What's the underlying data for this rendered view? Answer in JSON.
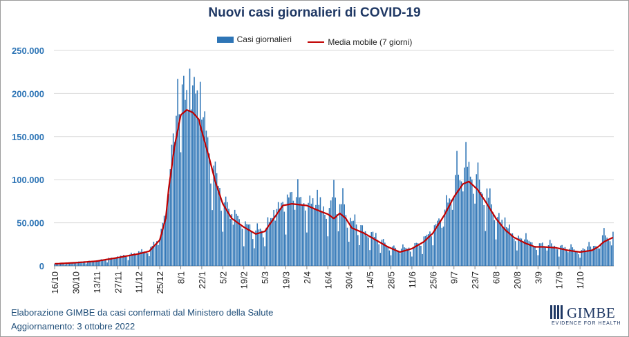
{
  "chart_data": {
    "type": "bar",
    "title": "Nuovi casi giornalieri di COVID-19",
    "xlabel": "",
    "ylabel": "",
    "ylim": [
      0,
      250000
    ],
    "y_ticks": [
      0,
      50000,
      100000,
      150000,
      200000,
      250000
    ],
    "y_tick_labels": [
      "0",
      "50.000",
      "100.000",
      "150.000",
      "200.000",
      "250.000"
    ],
    "x_tick_labels": [
      "16/10",
      "30/10",
      "13/11",
      "27/11",
      "11/12",
      "25/12",
      "8/1",
      "22/1",
      "5/2",
      "19/2",
      "5/3",
      "19/3",
      "2/4",
      "16/4",
      "30/4",
      "14/5",
      "28/5",
      "11/6",
      "25/6",
      "9/7",
      "23/7",
      "6/8",
      "20/8",
      "3/9",
      "17/9",
      "1/10"
    ],
    "tick_step_days": 14,
    "grid": true,
    "legend_position": "top",
    "series": [
      {
        "name": "Casi giornalieri",
        "kind": "bar",
        "color": "#2e75b6"
      },
      {
        "name": "Media mobile (7 giorni)",
        "kind": "line",
        "color": "#c00000"
      }
    ],
    "moving_average_anchors": [
      [
        0,
        2400
      ],
      [
        14,
        3700
      ],
      [
        28,
        5500
      ],
      [
        42,
        9500
      ],
      [
        56,
        14000
      ],
      [
        63,
        17000
      ],
      [
        70,
        30000
      ],
      [
        74,
        55000
      ],
      [
        76,
        90000
      ],
      [
        80,
        140000
      ],
      [
        84,
        175000
      ],
      [
        88,
        181000
      ],
      [
        92,
        178000
      ],
      [
        96,
        170000
      ],
      [
        99,
        150000
      ],
      [
        103,
        125000
      ],
      [
        107,
        98000
      ],
      [
        112,
        72000
      ],
      [
        118,
        55000
      ],
      [
        126,
        45000
      ],
      [
        134,
        37000
      ],
      [
        140,
        40000
      ],
      [
        146,
        55000
      ],
      [
        152,
        70000
      ],
      [
        158,
        72000
      ],
      [
        168,
        70000
      ],
      [
        176,
        64000
      ],
      [
        182,
        60000
      ],
      [
        186,
        55000
      ],
      [
        190,
        61000
      ],
      [
        194,
        55000
      ],
      [
        198,
        44000
      ],
      [
        206,
        38000
      ],
      [
        214,
        30000
      ],
      [
        222,
        22000
      ],
      [
        230,
        16000
      ],
      [
        238,
        20000
      ],
      [
        246,
        28000
      ],
      [
        252,
        38000
      ],
      [
        260,
        60000
      ],
      [
        266,
        80000
      ],
      [
        272,
        95000
      ],
      [
        276,
        98000
      ],
      [
        282,
        88000
      ],
      [
        288,
        72000
      ],
      [
        294,
        55000
      ],
      [
        300,
        42000
      ],
      [
        306,
        33000
      ],
      [
        314,
        26000
      ],
      [
        320,
        22000
      ],
      [
        326,
        22000
      ],
      [
        334,
        21000
      ],
      [
        342,
        18000
      ],
      [
        350,
        16000
      ],
      [
        358,
        18000
      ],
      [
        362,
        22000
      ],
      [
        366,
        28000
      ],
      [
        372,
        33000
      ]
    ],
    "daily_peaks": [
      [
        0,
        2500
      ],
      [
        14,
        4000
      ],
      [
        28,
        6500
      ],
      [
        42,
        11000
      ],
      [
        56,
        17000
      ],
      [
        66,
        28000
      ],
      [
        72,
        50000
      ],
      [
        78,
        140000
      ],
      [
        82,
        218000
      ],
      [
        86,
        220000
      ],
      [
        90,
        228000
      ],
      [
        94,
        200000
      ],
      [
        97,
        214000
      ],
      [
        102,
        150000
      ],
      [
        108,
        102000
      ],
      [
        118,
        60000
      ],
      [
        130,
        48000
      ],
      [
        146,
        65000
      ],
      [
        158,
        86000
      ],
      [
        162,
        100000
      ],
      [
        175,
        88000
      ],
      [
        186,
        100000
      ],
      [
        192,
        90000
      ],
      [
        200,
        60000
      ],
      [
        214,
        38000
      ],
      [
        232,
        25000
      ],
      [
        250,
        40000
      ],
      [
        260,
        57000
      ],
      [
        268,
        133000
      ],
      [
        274,
        144000
      ],
      [
        282,
        121000
      ],
      [
        290,
        90000
      ],
      [
        300,
        56000
      ],
      [
        314,
        38000
      ],
      [
        330,
        30000
      ],
      [
        344,
        25000
      ],
      [
        356,
        28000
      ],
      [
        366,
        44000
      ],
      [
        372,
        30000
      ]
    ],
    "num_days": 373
  }
}
